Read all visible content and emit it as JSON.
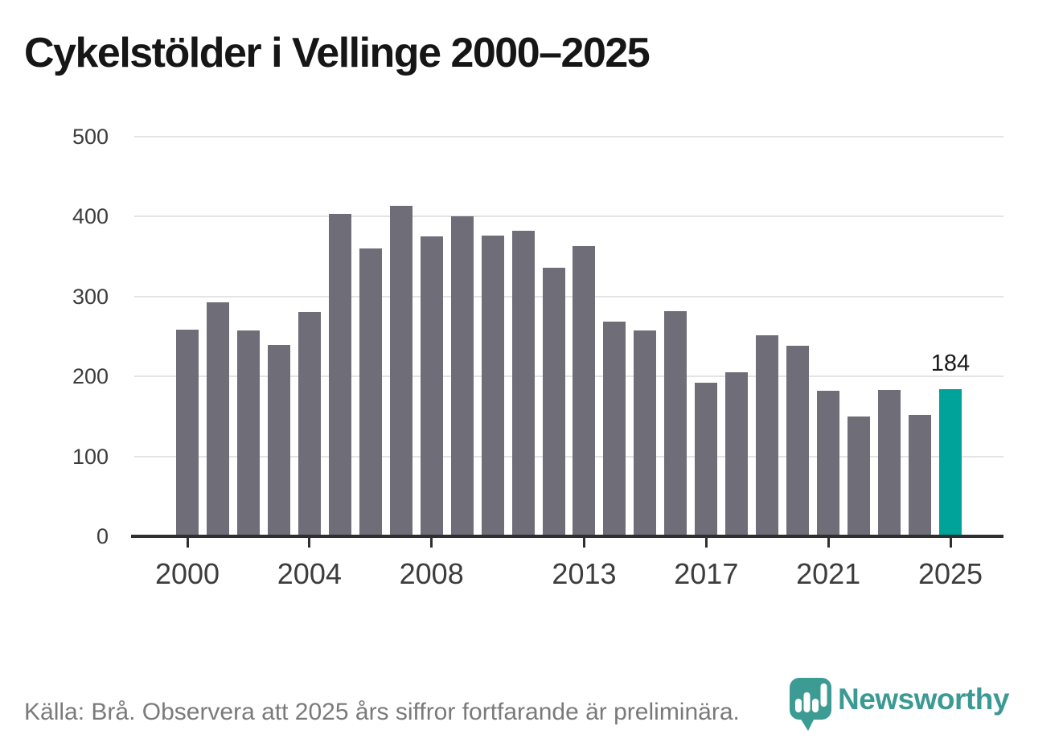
{
  "title": "Cykelstölder i Vellinge 2000–2025",
  "chart_data": {
    "type": "bar",
    "x": [
      2000,
      2001,
      2002,
      2003,
      2004,
      2005,
      2006,
      2007,
      2008,
      2009,
      2010,
      2011,
      2012,
      2013,
      2014,
      2015,
      2016,
      2017,
      2018,
      2019,
      2020,
      2021,
      2022,
      2023,
      2024,
      2025
    ],
    "values": [
      259,
      293,
      258,
      239,
      281,
      403,
      360,
      413,
      375,
      400,
      376,
      382,
      336,
      363,
      269,
      258,
      282,
      192,
      205,
      252,
      238,
      182,
      150,
      183,
      152,
      184
    ],
    "title": "Cykelstölder i Vellinge 2000–2025",
    "xlabel": "",
    "ylabel": "",
    "ylim": [
      0,
      500
    ],
    "y_ticks": [
      0,
      100,
      200,
      300,
      400,
      500
    ],
    "x_tick_years": [
      2000,
      2004,
      2008,
      2013,
      2017,
      2021,
      2025
    ],
    "grid": "horizontal",
    "legend": "none",
    "bar_color": "#6f6e78",
    "highlight_year": 2025,
    "highlight_color": "#00a39a",
    "highlight_value_label": "184"
  },
  "footer": {
    "source_text": "Källa: Brå. Observera att 2025 års siffror fortfarande är preliminära."
  },
  "logo": {
    "wordmark": "Newsworthy",
    "icon_name": "newsworthy-barchart-pin-icon",
    "brand_color": "#3b9a93"
  }
}
